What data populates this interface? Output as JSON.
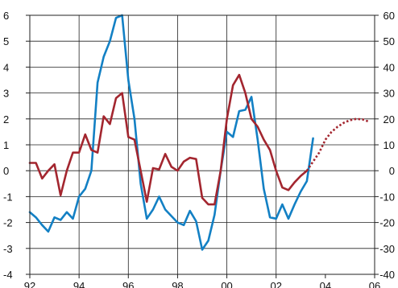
{
  "chart_data": {
    "type": "line",
    "title": "",
    "xlabel": "",
    "ylabel_left": "",
    "ylabel_right": "",
    "x_axis": {
      "range": [
        1992,
        2006
      ],
      "ticks": [
        1992,
        1994,
        1996,
        1998,
        2000,
        2002,
        2004,
        2006
      ],
      "tick_labels": [
        "92",
        "94",
        "96",
        "98",
        "00",
        "02",
        "04",
        "06"
      ]
    },
    "y_axis_left": {
      "range": [
        -4,
        6
      ],
      "ticks": [
        -4,
        -3,
        -2,
        -1,
        0,
        1,
        2,
        3,
        4,
        5,
        6
      ],
      "tick_labels": [
        "-4",
        "-3",
        "-2",
        "-1",
        "0",
        "1",
        "2",
        "3",
        "4",
        "5",
        "6"
      ]
    },
    "y_axis_right": {
      "range": [
        -40,
        60
      ],
      "ticks": [
        -40,
        -30,
        -20,
        -10,
        0,
        10,
        20,
        30,
        40,
        50,
        60
      ],
      "tick_labels": [
        "-40",
        "-30",
        "-20",
        "-10",
        "0",
        "10",
        "20",
        "30",
        "40",
        "50",
        "60"
      ]
    },
    "grid": true,
    "vertical_grid_at": [
      1994,
      1996,
      1998,
      2000,
      2002
    ],
    "series": [
      {
        "color": "#1380c4",
        "axis": "right",
        "style": "solid",
        "points": [
          [
            1992.0,
            -16
          ],
          [
            1992.25,
            -18
          ],
          [
            1992.5,
            -21
          ],
          [
            1992.75,
            -23.5
          ],
          [
            1993.0,
            -18
          ],
          [
            1993.25,
            -19
          ],
          [
            1993.5,
            -16
          ],
          [
            1993.75,
            -18.5
          ],
          [
            1994.0,
            -10
          ],
          [
            1994.25,
            -7
          ],
          [
            1994.5,
            0
          ],
          [
            1994.75,
            34
          ],
          [
            1995.0,
            44
          ],
          [
            1995.25,
            50
          ],
          [
            1995.5,
            59
          ],
          [
            1995.75,
            60
          ],
          [
            1996.0,
            35
          ],
          [
            1996.25,
            20
          ],
          [
            1996.5,
            -5
          ],
          [
            1996.75,
            -18.5
          ],
          [
            1997.0,
            -15
          ],
          [
            1997.25,
            -10
          ],
          [
            1997.5,
            -15
          ],
          [
            1997.75,
            -17.5
          ],
          [
            1998.0,
            -20
          ],
          [
            1998.25,
            -21
          ],
          [
            1998.5,
            -15.5
          ],
          [
            1998.75,
            -19.5
          ],
          [
            1999.0,
            -30.5
          ],
          [
            1999.25,
            -27
          ],
          [
            1999.5,
            -17
          ],
          [
            1999.75,
            0
          ],
          [
            2000.0,
            15
          ],
          [
            2000.25,
            13
          ],
          [
            2000.5,
            23
          ],
          [
            2000.75,
            23.5
          ],
          [
            2001.0,
            28.5
          ],
          [
            2001.25,
            12
          ],
          [
            2001.5,
            -7
          ],
          [
            2001.75,
            -18
          ],
          [
            2002.0,
            -18.5
          ],
          [
            2002.25,
            -13
          ],
          [
            2002.5,
            -18.5
          ],
          [
            2002.75,
            -13
          ],
          [
            2003.0,
            -8
          ],
          [
            2003.25,
            -4
          ],
          [
            2003.5,
            12.5
          ]
        ]
      },
      {
        "color": "#a3262f",
        "axis": "left",
        "style": "solid",
        "points": [
          [
            1992.0,
            0.3
          ],
          [
            1992.25,
            0.3
          ],
          [
            1992.5,
            -0.3
          ],
          [
            1992.75,
            0
          ],
          [
            1993.0,
            0.25
          ],
          [
            1993.25,
            -0.95
          ],
          [
            1993.5,
            0
          ],
          [
            1993.75,
            0.7
          ],
          [
            1994.0,
            0.7
          ],
          [
            1994.25,
            1.4
          ],
          [
            1994.5,
            0.8
          ],
          [
            1994.75,
            0.7
          ],
          [
            1995.0,
            2.1
          ],
          [
            1995.25,
            1.8
          ],
          [
            1995.5,
            2.8
          ],
          [
            1995.75,
            3.0
          ],
          [
            1996.0,
            1.3
          ],
          [
            1996.25,
            1.2
          ],
          [
            1996.5,
            0
          ],
          [
            1996.75,
            -1.2
          ],
          [
            1997.0,
            0.1
          ],
          [
            1997.25,
            0.05
          ],
          [
            1997.5,
            0.65
          ],
          [
            1997.75,
            0.15
          ],
          [
            1998.0,
            0
          ],
          [
            1998.25,
            0.35
          ],
          [
            1998.5,
            0.5
          ],
          [
            1998.75,
            0.45
          ],
          [
            1999.0,
            -1.05
          ],
          [
            1999.25,
            -1.3
          ],
          [
            1999.5,
            -1.3
          ],
          [
            1999.75,
            0
          ],
          [
            2000.0,
            2.0
          ],
          [
            2000.25,
            3.3
          ],
          [
            2000.5,
            3.7
          ],
          [
            2000.75,
            3.0
          ],
          [
            2001.0,
            2.0
          ],
          [
            2001.25,
            1.7
          ],
          [
            2001.5,
            1.2
          ],
          [
            2001.75,
            0.8
          ],
          [
            2002.0,
            0
          ],
          [
            2002.25,
            -0.65
          ],
          [
            2002.5,
            -0.75
          ],
          [
            2002.75,
            -0.45
          ],
          [
            2003.0,
            -0.2
          ],
          [
            2003.25,
            0
          ]
        ]
      },
      {
        "color": "#a3262f",
        "axis": "left",
        "style": "dotted",
        "points": [
          [
            2003.25,
            0
          ],
          [
            2003.5,
            0.35
          ],
          [
            2003.75,
            0.7
          ],
          [
            2004.0,
            1.2
          ],
          [
            2004.25,
            1.5
          ],
          [
            2004.5,
            1.7
          ],
          [
            2004.75,
            1.85
          ],
          [
            2005.0,
            1.95
          ],
          [
            2005.25,
            2.0
          ],
          [
            2005.5,
            1.98
          ],
          [
            2005.75,
            1.9
          ]
        ]
      }
    ]
  }
}
